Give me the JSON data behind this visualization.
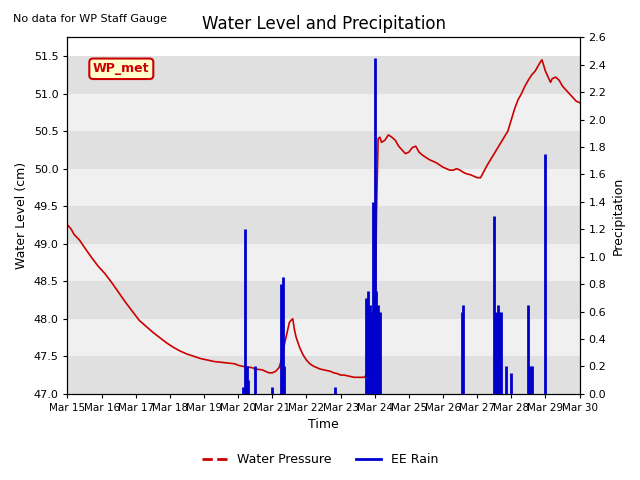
{
  "title": "Water Level and Precipitation",
  "subtitle": "No data for WP Staff Gauge",
  "xlabel": "Time",
  "ylabel_left": "Water Level (cm)",
  "ylabel_right": "Precipitation",
  "annotation": "WP_met",
  "ylim_left": [
    47.0,
    51.75
  ],
  "ylim_right": [
    0.0,
    2.6
  ],
  "yticks_left": [
    47.0,
    47.5,
    48.0,
    48.5,
    49.0,
    49.5,
    50.0,
    50.5,
    51.0,
    51.5
  ],
  "yticks_right": [
    0.0,
    0.2,
    0.4,
    0.6,
    0.8,
    1.0,
    1.2,
    1.4,
    1.6,
    1.8,
    2.0,
    2.2,
    2.4,
    2.6
  ],
  "xtick_labels": [
    "Mar 15",
    "Mar 16",
    "Mar 17",
    "Mar 18",
    "Mar 19",
    "Mar 20",
    "Mar 21",
    "Mar 22",
    "Mar 23",
    "Mar 24",
    "Mar 25",
    "Mar 26",
    "Mar 27",
    "Mar 28",
    "Mar 29",
    "Mar 30"
  ],
  "water_pressure_color": "#cc0000",
  "rain_color": "#0000cc",
  "background_alternating": [
    "#e0e0e0",
    "#f0f0f0"
  ],
  "legend_entries": [
    "Water Pressure",
    "EE Rain"
  ],
  "water_pressure_data": [
    [
      0.0,
      49.25
    ],
    [
      0.1,
      49.2
    ],
    [
      0.2,
      49.12
    ],
    [
      0.35,
      49.05
    ],
    [
      0.5,
      48.95
    ],
    [
      0.7,
      48.82
    ],
    [
      0.9,
      48.7
    ],
    [
      1.1,
      48.6
    ],
    [
      1.3,
      48.48
    ],
    [
      1.5,
      48.35
    ],
    [
      1.7,
      48.22
    ],
    [
      1.9,
      48.1
    ],
    [
      2.1,
      47.98
    ],
    [
      2.3,
      47.9
    ],
    [
      2.5,
      47.82
    ],
    [
      2.7,
      47.75
    ],
    [
      2.9,
      47.68
    ],
    [
      3.1,
      47.62
    ],
    [
      3.3,
      47.57
    ],
    [
      3.5,
      47.53
    ],
    [
      3.7,
      47.5
    ],
    [
      3.9,
      47.47
    ],
    [
      4.1,
      47.45
    ],
    [
      4.3,
      47.43
    ],
    [
      4.5,
      47.42
    ],
    [
      4.7,
      47.41
    ],
    [
      4.9,
      47.4
    ],
    [
      5.0,
      47.38
    ],
    [
      5.2,
      47.36
    ],
    [
      5.4,
      47.35
    ],
    [
      5.5,
      47.33
    ],
    [
      5.7,
      47.32
    ],
    [
      5.8,
      47.3
    ],
    [
      5.9,
      47.28
    ],
    [
      6.0,
      47.28
    ],
    [
      6.1,
      47.3
    ],
    [
      6.2,
      47.35
    ],
    [
      6.3,
      47.5
    ],
    [
      6.35,
      47.65
    ],
    [
      6.4,
      47.75
    ],
    [
      6.45,
      47.85
    ],
    [
      6.5,
      47.95
    ],
    [
      6.55,
      47.98
    ],
    [
      6.6,
      48.0
    ],
    [
      6.65,
      47.85
    ],
    [
      6.7,
      47.75
    ],
    [
      6.8,
      47.62
    ],
    [
      6.9,
      47.52
    ],
    [
      7.0,
      47.45
    ],
    [
      7.1,
      47.4
    ],
    [
      7.2,
      47.37
    ],
    [
      7.3,
      47.35
    ],
    [
      7.4,
      47.33
    ],
    [
      7.5,
      47.32
    ],
    [
      7.6,
      47.31
    ],
    [
      7.7,
      47.3
    ],
    [
      7.8,
      47.28
    ],
    [
      7.9,
      47.27
    ],
    [
      8.0,
      47.25
    ],
    [
      8.1,
      47.25
    ],
    [
      8.2,
      47.24
    ],
    [
      8.3,
      47.23
    ],
    [
      8.4,
      47.22
    ],
    [
      8.5,
      47.22
    ],
    [
      8.6,
      47.22
    ],
    [
      8.7,
      47.22
    ],
    [
      8.75,
      47.25
    ],
    [
      8.8,
      47.3
    ],
    [
      8.85,
      47.35
    ],
    [
      8.9,
      47.4
    ],
    [
      8.95,
      47.55
    ],
    [
      9.0,
      47.22
    ],
    [
      9.05,
      49.35
    ],
    [
      9.1,
      50.4
    ],
    [
      9.15,
      50.42
    ],
    [
      9.2,
      50.35
    ],
    [
      9.3,
      50.38
    ],
    [
      9.4,
      50.45
    ],
    [
      9.5,
      50.42
    ],
    [
      9.6,
      50.38
    ],
    [
      9.7,
      50.3
    ],
    [
      9.8,
      50.25
    ],
    [
      9.9,
      50.2
    ],
    [
      10.0,
      50.22
    ],
    [
      10.1,
      50.28
    ],
    [
      10.2,
      50.3
    ],
    [
      10.3,
      50.22
    ],
    [
      10.4,
      50.18
    ],
    [
      10.5,
      50.15
    ],
    [
      10.6,
      50.12
    ],
    [
      10.7,
      50.1
    ],
    [
      10.8,
      50.08
    ],
    [
      10.9,
      50.05
    ],
    [
      11.0,
      50.02
    ],
    [
      11.1,
      50.0
    ],
    [
      11.2,
      49.98
    ],
    [
      11.3,
      49.98
    ],
    [
      11.4,
      50.0
    ],
    [
      11.5,
      49.98
    ],
    [
      11.6,
      49.95
    ],
    [
      11.7,
      49.93
    ],
    [
      11.8,
      49.92
    ],
    [
      11.9,
      49.9
    ],
    [
      12.0,
      49.88
    ],
    [
      12.1,
      49.88
    ],
    [
      12.3,
      50.05
    ],
    [
      12.5,
      50.2
    ],
    [
      12.7,
      50.35
    ],
    [
      12.9,
      50.5
    ],
    [
      13.0,
      50.65
    ],
    [
      13.1,
      50.8
    ],
    [
      13.2,
      50.92
    ],
    [
      13.3,
      51.0
    ],
    [
      13.4,
      51.1
    ],
    [
      13.5,
      51.18
    ],
    [
      13.6,
      51.25
    ],
    [
      13.7,
      51.3
    ],
    [
      13.8,
      51.38
    ],
    [
      13.85,
      51.42
    ],
    [
      13.9,
      51.45
    ],
    [
      14.0,
      51.3
    ],
    [
      14.1,
      51.2
    ],
    [
      14.15,
      51.15
    ],
    [
      14.2,
      51.2
    ],
    [
      14.3,
      51.22
    ],
    [
      14.4,
      51.18
    ],
    [
      14.5,
      51.1
    ],
    [
      14.6,
      51.05
    ],
    [
      14.7,
      51.0
    ],
    [
      14.8,
      50.95
    ],
    [
      14.9,
      50.9
    ],
    [
      15.0,
      50.88
    ]
  ],
  "rain_data": [
    [
      5.15,
      0.05
    ],
    [
      5.2,
      1.2
    ],
    [
      5.25,
      0.2
    ],
    [
      5.3,
      0.1
    ],
    [
      5.5,
      0.2
    ],
    [
      6.0,
      0.05
    ],
    [
      6.25,
      0.8
    ],
    [
      6.3,
      0.85
    ],
    [
      6.35,
      0.2
    ],
    [
      7.85,
      0.05
    ],
    [
      8.75,
      0.7
    ],
    [
      8.8,
      0.75
    ],
    [
      8.85,
      0.65
    ],
    [
      8.9,
      0.6
    ],
    [
      8.95,
      1.4
    ],
    [
      9.0,
      2.45
    ],
    [
      9.05,
      0.75
    ],
    [
      9.1,
      0.65
    ],
    [
      9.15,
      0.6
    ],
    [
      11.55,
      0.6
    ],
    [
      11.6,
      0.65
    ],
    [
      12.5,
      1.3
    ],
    [
      12.55,
      0.6
    ],
    [
      12.6,
      0.65
    ],
    [
      12.65,
      0.6
    ],
    [
      12.7,
      0.6
    ],
    [
      12.85,
      0.2
    ],
    [
      13.0,
      0.15
    ],
    [
      13.5,
      0.65
    ],
    [
      13.55,
      0.2
    ],
    [
      13.6,
      0.2
    ],
    [
      14.0,
      1.75
    ]
  ]
}
